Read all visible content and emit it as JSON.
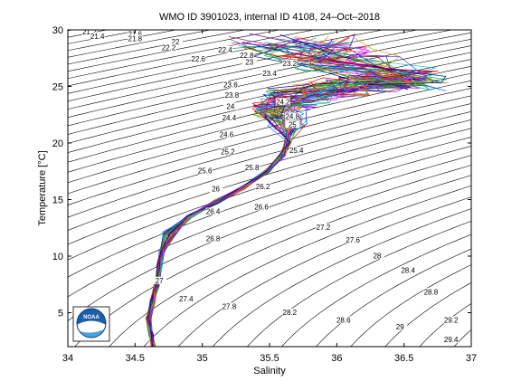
{
  "chart_data": {
    "type": "line",
    "title": "WMO ID 3901023, internal ID 4108, 24–Oct–2018",
    "xlabel": "Salinity",
    "ylabel": "Temperature [°C]",
    "xlim": [
      34,
      37
    ],
    "ylim": [
      2,
      30
    ],
    "x_ticks": [
      "34",
      "34.5",
      "35",
      "35.5",
      "36",
      "36.5",
      "37"
    ],
    "y_ticks": [
      "5",
      "10",
      "15",
      "20",
      "25",
      "30"
    ],
    "x_tick_values": [
      34,
      34.5,
      35,
      35.5,
      36,
      36.5,
      37
    ],
    "y_tick_values": [
      5,
      10,
      15,
      20,
      25,
      30
    ],
    "grid": false,
    "logo_text": "NOAA",
    "isopycnal_labels": [
      {
        "text": "21.2",
        "s": 34.16,
        "t": 29.7
      },
      {
        "text": "21.4",
        "s": 34.22,
        "t": 29.3
      },
      {
        "text": "21.6",
        "s": 34.5,
        "t": 29.5
      },
      {
        "text": "21.8",
        "s": 34.5,
        "t": 29.1
      },
      {
        "text": "22",
        "s": 34.8,
        "t": 28.8
      },
      {
        "text": "22.2",
        "s": 34.75,
        "t": 28.3
      },
      {
        "text": "22.4",
        "s": 35.17,
        "t": 28.1
      },
      {
        "text": "22.6",
        "s": 34.97,
        "t": 27.3
      },
      {
        "text": "22.8",
        "s": 35.33,
        "t": 27.6
      },
      {
        "text": "23",
        "s": 35.35,
        "t": 27.0
      },
      {
        "text": "23.2",
        "s": 35.65,
        "t": 26.9
      },
      {
        "text": "23.4",
        "s": 35.5,
        "t": 26.0
      },
      {
        "text": "23.6",
        "s": 35.21,
        "t": 25.0
      },
      {
        "text": "23.8",
        "s": 35.22,
        "t": 24.1
      },
      {
        "text": "24",
        "s": 35.21,
        "t": 23.1
      },
      {
        "text": "24.2",
        "s": 35.6,
        "t": 23.5
      },
      {
        "text": "24.4",
        "s": 35.2,
        "t": 22.1
      },
      {
        "text": "24.6",
        "s": 35.18,
        "t": 20.6
      },
      {
        "text": "24.8",
        "s": 35.67,
        "t": 22.2
      },
      {
        "text": "25",
        "s": 35.67,
        "t": 21.5
      },
      {
        "text": "25.2",
        "s": 35.19,
        "t": 19.1
      },
      {
        "text": "25.4",
        "s": 35.7,
        "t": 19.2
      },
      {
        "text": "25.6",
        "s": 35.02,
        "t": 17.4
      },
      {
        "text": "25.8",
        "s": 35.37,
        "t": 17.7
      },
      {
        "text": "26",
        "s": 35.1,
        "t": 15.8
      },
      {
        "text": "26.2",
        "s": 35.45,
        "t": 16.0
      },
      {
        "text": "26.4",
        "s": 35.08,
        "t": 13.8
      },
      {
        "text": "26.6",
        "s": 35.44,
        "t": 14.2
      },
      {
        "text": "26.8",
        "s": 35.08,
        "t": 11.4
      },
      {
        "text": "27",
        "s": 34.68,
        "t": 7.7
      },
      {
        "text": "27.2",
        "s": 35.9,
        "t": 12.4
      },
      {
        "text": "27.4",
        "s": 34.88,
        "t": 6.1
      },
      {
        "text": "27.6",
        "s": 36.12,
        "t": 11.3
      },
      {
        "text": "27.8",
        "s": 35.2,
        "t": 5.4
      },
      {
        "text": "28",
        "s": 36.3,
        "t": 9.9
      },
      {
        "text": "28.2",
        "s": 35.65,
        "t": 4.9
      },
      {
        "text": "28.4",
        "s": 36.53,
        "t": 8.6
      },
      {
        "text": "28.6",
        "s": 36.05,
        "t": 4.2
      },
      {
        "text": "28.8",
        "s": 36.7,
        "t": 6.7
      },
      {
        "text": "29",
        "s": 36.47,
        "t": 3.6
      },
      {
        "text": "29.2",
        "s": 36.85,
        "t": 4.2
      },
      {
        "text": "29.4",
        "s": 36.85,
        "t": 2.5
      }
    ]
  }
}
